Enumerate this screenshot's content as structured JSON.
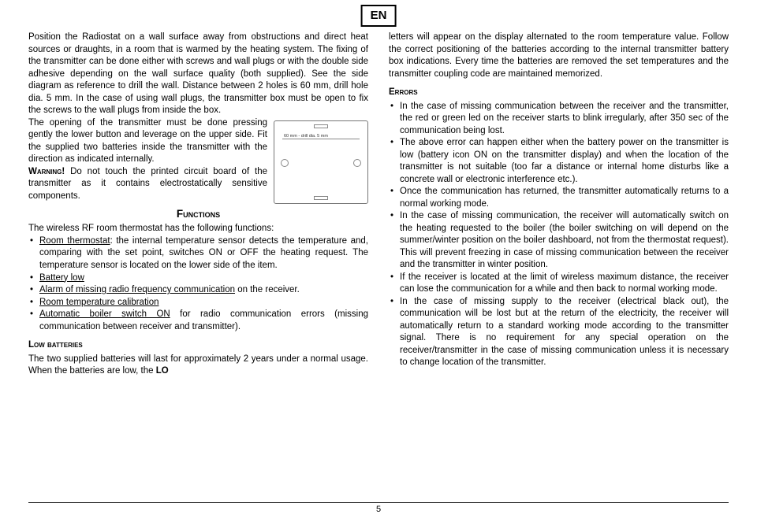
{
  "lang_badge": "EN",
  "page_number": "5",
  "left": {
    "p1": "Position the Radiostat on a wall surface away from obstructions and direct heat sources or draughts, in a room that is warmed by the heating system. The fixing of the transmitter can be done either with screws and wall plugs or with the double side adhesive depending on the wall surface quality (both supplied). See the side diagram as reference to drill the wall. Distance between 2 holes is 60 mm, drill hole dia. 5 mm. In the case of using wall plugs, the transmitter box must be open to fix the screws to the wall plugs from inside the box.",
    "p1b": "The opening of the transmitter must be done pressing gently the lower button and leverage on the upper side. Fit the supplied two batteries inside the transmitter with the direction as indicated internally.",
    "warning_label": "Warning!",
    "warning_text": " Do not touch the printed circuit board of the transmitter as it contains electrostatically sensitive components.",
    "diagram_label": "60 mm - drill dia. 5 mm",
    "functions_heading": "Functions",
    "functions_intro": "The wireless RF room thermostat has the following functions:",
    "functions": [
      {
        "lead_u": "Room thermostat",
        "rest": ": the internal temperature sensor detects the temperature and, comparing with the set point, switches ON or OFF the heating request. The temperature sensor is located on the lower side of the item."
      },
      {
        "lead_u": "Battery low",
        "rest": ""
      },
      {
        "lead_u": "Alarm of missing radio frequency communication",
        "rest": " on the receiver."
      },
      {
        "lead_u": "Room temperature calibration",
        "rest": ""
      },
      {
        "lead_u": "Automatic boiler switch ON",
        "rest": " for radio communication errors (missing communication between receiver and transmitter)."
      }
    ],
    "lowbat_heading": "Low batteries",
    "lowbat_text_a": "The two supplied batteries will last for approximately 2 years under a normal usage. When the batteries are low, the ",
    "lowbat_text_lo": "LO"
  },
  "right": {
    "p1": "letters will appear on the display alternated to the room temperature value. Follow the correct positioning of the batteries according to the internal transmitter battery box indications. Every time the batteries are removed the set temperatures and the transmitter coupling code are maintained memorized.",
    "errors_heading": "Errors",
    "errors": [
      "In the case of missing communication between the receiver and the transmitter, the red or green led on the receiver starts to blink irregularly, after 350 sec of the communication being lost.",
      "The above error can happen either when the battery power on the transmitter is low (battery icon ON on the transmitter display) and when the location of the transmitter is not suitable (too far a distance or internal home disturbs like a concrete wall or electronic interference etc.).",
      "Once the communication has returned, the transmitter automatically returns to a normal working mode.",
      "In the case of missing communication, the receiver will automatically switch on the heating requested to the boiler (the boiler switching on will depend on the summer/winter position on the boiler dashboard, not from the thermostat request). This will prevent freezing in case of missing communication between the receiver and the transmitter in winter position.",
      "If the receiver is located at the limit of wireless maximum distance, the receiver can lose the communication for a while and then back to normal working mode.",
      "In the case of missing supply to the receiver (electrical black out), the communication will be lost but at the return of the electricity, the receiver will automatically return to a standard working mode according to the transmitter signal. There is no requirement for any special operation on the receiver/transmitter in the case of missing communication unless it is necessary to change location of the transmitter."
    ]
  }
}
